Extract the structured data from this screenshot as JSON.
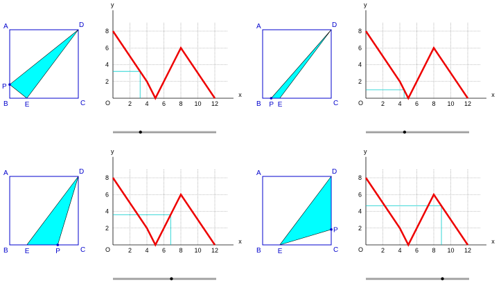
{
  "panels": [
    {
      "p_position": 3.2,
      "p_side": "AB",
      "p_label": "P"
    },
    {
      "p_position": 4.5,
      "p_side": "BC",
      "p_label": "P"
    },
    {
      "p_position": 6.8,
      "p_side": "BC",
      "p_label": "P"
    },
    {
      "p_position": 8.9,
      "p_side": "CD",
      "p_label": "P"
    }
  ],
  "square": {
    "vertices": {
      "A": "A",
      "B": "B",
      "C": "C",
      "D": "D"
    },
    "point_e": "E"
  },
  "chart_data": {
    "type": "line",
    "x": [
      0,
      4,
      5,
      8,
      12
    ],
    "y": [
      8,
      2,
      0,
      6,
      0
    ],
    "xlabel": "x",
    "ylabel": "y",
    "origin_label": "O",
    "xticks": [
      "2",
      "4",
      "6",
      "8",
      "10",
      "12"
    ],
    "yticks": [
      "2",
      "4",
      "6",
      "8"
    ],
    "xlim": [
      0,
      12
    ],
    "ylim": [
      0,
      8
    ],
    "grid": true
  },
  "colors": {
    "square_stroke": "#0000cc",
    "triangle_fill": "#00ffff",
    "curve": "#ee0000",
    "grid": "#888888",
    "guide": "#00cccc",
    "slider_track": "#999999",
    "slider_knob": "#000000",
    "label": "#0000cc"
  }
}
